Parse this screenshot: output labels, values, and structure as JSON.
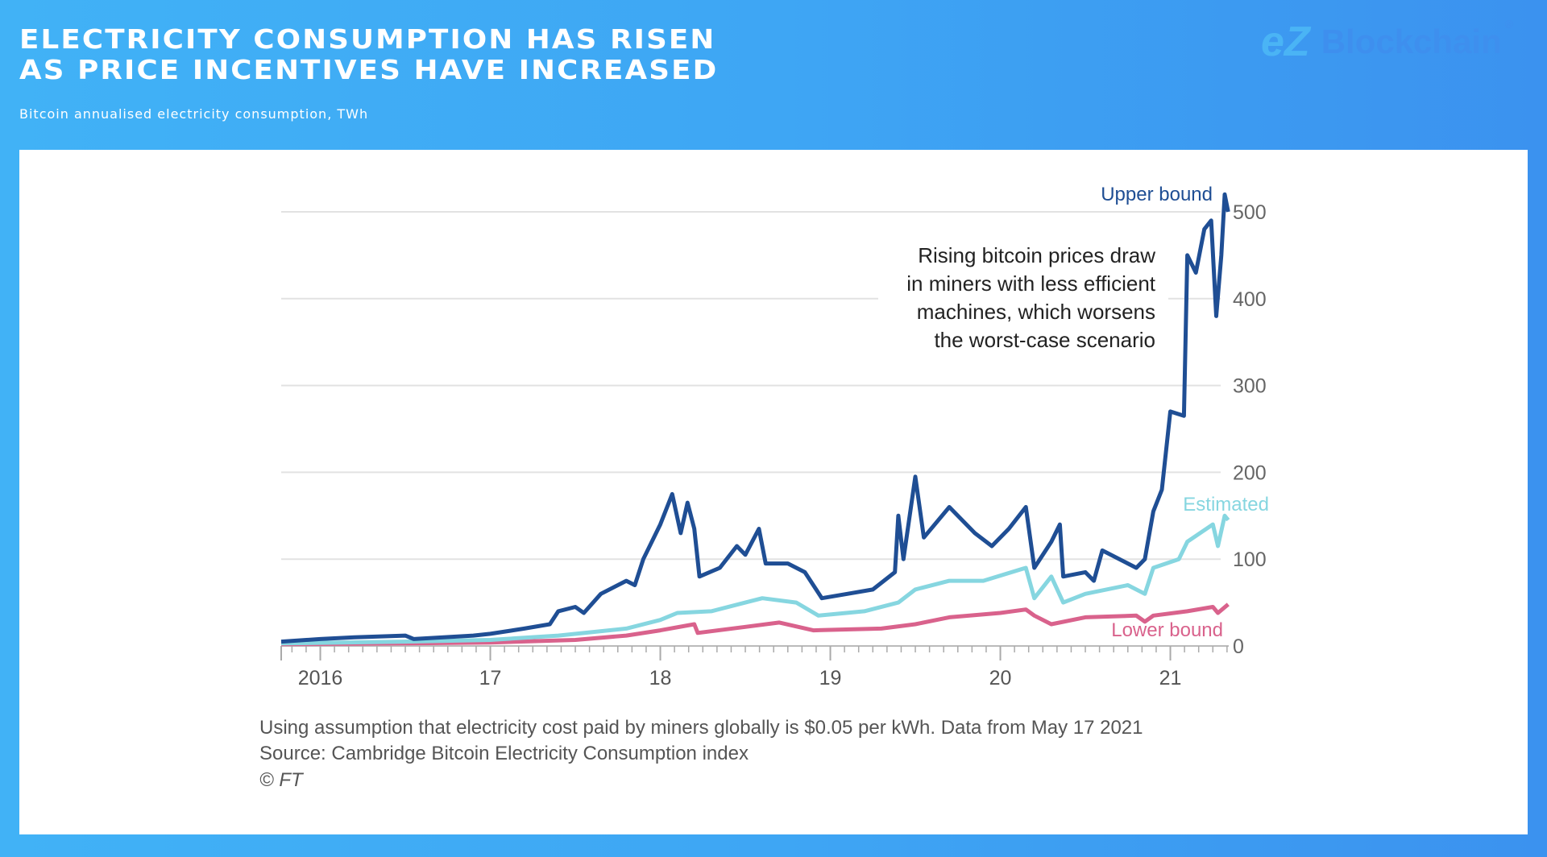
{
  "header": {
    "title_line1": "Electricity consumption has risen",
    "title_line2": "as price incentives have increased",
    "subtitle": "Bitcoin annualised electricity consumption, TWh"
  },
  "logo": {
    "mark": "eZ",
    "name": "Blockchain",
    "reg": "®"
  },
  "footnote": {
    "line1": "Using assumption that electricity cost paid by miners globally is $0.05 per kWh. Data from May 17 2021",
    "line2": "Source: Cambridge Bitcoin Electricity Consumption index",
    "line3": "© FT"
  },
  "chart_data": {
    "type": "line",
    "annotation": [
      "Rising bitcoin prices draw",
      "in miners with less efficient",
      "machines, which worsens",
      "the worst-case scenario"
    ],
    "xlim": [
      2015.77,
      2021.38
    ],
    "ylim": [
      0,
      500
    ],
    "yticks": [
      0,
      100,
      200,
      300,
      400,
      500
    ],
    "xticks": [
      {
        "x": 2016,
        "label": "2016"
      },
      {
        "x": 2017,
        "label": "17"
      },
      {
        "x": 2018,
        "label": "18"
      },
      {
        "x": 2019,
        "label": "19"
      },
      {
        "x": 2020,
        "label": "20"
      },
      {
        "x": 2021,
        "label": "21"
      }
    ],
    "grid": true,
    "series": [
      {
        "name": "Upper bound",
        "color": "#1f4e94",
        "points": [
          [
            2015.77,
            5
          ],
          [
            2016.0,
            8
          ],
          [
            2016.2,
            10
          ],
          [
            2016.5,
            12
          ],
          [
            2016.55,
            8
          ],
          [
            2016.9,
            12
          ],
          [
            2017.0,
            14
          ],
          [
            2017.2,
            20
          ],
          [
            2017.35,
            25
          ],
          [
            2017.4,
            40
          ],
          [
            2017.5,
            45
          ],
          [
            2017.55,
            38
          ],
          [
            2017.65,
            60
          ],
          [
            2017.8,
            75
          ],
          [
            2017.85,
            70
          ],
          [
            2017.9,
            100
          ],
          [
            2018.0,
            140
          ],
          [
            2018.07,
            175
          ],
          [
            2018.12,
            130
          ],
          [
            2018.16,
            165
          ],
          [
            2018.2,
            135
          ],
          [
            2018.23,
            80
          ],
          [
            2018.35,
            90
          ],
          [
            2018.45,
            115
          ],
          [
            2018.5,
            105
          ],
          [
            2018.58,
            135
          ],
          [
            2018.62,
            95
          ],
          [
            2018.75,
            95
          ],
          [
            2018.85,
            85
          ],
          [
            2018.95,
            55
          ],
          [
            2019.1,
            60
          ],
          [
            2019.25,
            65
          ],
          [
            2019.38,
            85
          ],
          [
            2019.4,
            150
          ],
          [
            2019.43,
            100
          ],
          [
            2019.5,
            195
          ],
          [
            2019.55,
            125
          ],
          [
            2019.7,
            160
          ],
          [
            2019.85,
            130
          ],
          [
            2019.95,
            115
          ],
          [
            2020.05,
            135
          ],
          [
            2020.15,
            160
          ],
          [
            2020.2,
            90
          ],
          [
            2020.3,
            120
          ],
          [
            2020.35,
            140
          ],
          [
            2020.37,
            80
          ],
          [
            2020.5,
            85
          ],
          [
            2020.55,
            75
          ],
          [
            2020.6,
            110
          ],
          [
            2020.75,
            95
          ],
          [
            2020.8,
            90
          ],
          [
            2020.85,
            100
          ],
          [
            2020.9,
            155
          ],
          [
            2020.95,
            180
          ],
          [
            2021.0,
            270
          ],
          [
            2021.08,
            265
          ],
          [
            2021.1,
            450
          ],
          [
            2021.15,
            430
          ],
          [
            2021.2,
            480
          ],
          [
            2021.24,
            490
          ],
          [
            2021.27,
            380
          ],
          [
            2021.3,
            450
          ],
          [
            2021.32,
            520
          ],
          [
            2021.34,
            500
          ]
        ]
      },
      {
        "name": "Estimated",
        "color": "#86d6e0",
        "points": [
          [
            2015.77,
            3
          ],
          [
            2016.5,
            5
          ],
          [
            2017.0,
            7
          ],
          [
            2017.4,
            12
          ],
          [
            2017.8,
            20
          ],
          [
            2018.0,
            30
          ],
          [
            2018.1,
            38
          ],
          [
            2018.3,
            40
          ],
          [
            2018.5,
            50
          ],
          [
            2018.6,
            55
          ],
          [
            2018.8,
            50
          ],
          [
            2018.93,
            35
          ],
          [
            2019.2,
            40
          ],
          [
            2019.4,
            50
          ],
          [
            2019.5,
            65
          ],
          [
            2019.7,
            75
          ],
          [
            2019.9,
            75
          ],
          [
            2020.15,
            90
          ],
          [
            2020.2,
            55
          ],
          [
            2020.3,
            80
          ],
          [
            2020.37,
            50
          ],
          [
            2020.5,
            60
          ],
          [
            2020.75,
            70
          ],
          [
            2020.85,
            60
          ],
          [
            2020.9,
            90
          ],
          [
            2021.05,
            100
          ],
          [
            2021.1,
            120
          ],
          [
            2021.25,
            140
          ],
          [
            2021.28,
            115
          ],
          [
            2021.32,
            150
          ],
          [
            2021.34,
            145
          ]
        ]
      },
      {
        "name": "Lower bound",
        "color": "#d9628c",
        "points": [
          [
            2015.77,
            2
          ],
          [
            2016.5,
            3
          ],
          [
            2017.0,
            4
          ],
          [
            2017.5,
            7
          ],
          [
            2017.8,
            12
          ],
          [
            2018.0,
            18
          ],
          [
            2018.2,
            25
          ],
          [
            2018.22,
            15
          ],
          [
            2018.5,
            22
          ],
          [
            2018.7,
            27
          ],
          [
            2018.9,
            18
          ],
          [
            2019.3,
            20
          ],
          [
            2019.5,
            25
          ],
          [
            2019.7,
            33
          ],
          [
            2020.0,
            38
          ],
          [
            2020.15,
            42
          ],
          [
            2020.2,
            35
          ],
          [
            2020.3,
            25
          ],
          [
            2020.5,
            33
          ],
          [
            2020.8,
            35
          ],
          [
            2020.85,
            28
          ],
          [
            2020.9,
            35
          ],
          [
            2021.1,
            40
          ],
          [
            2021.25,
            45
          ],
          [
            2021.28,
            38
          ],
          [
            2021.34,
            48
          ]
        ]
      }
    ]
  }
}
